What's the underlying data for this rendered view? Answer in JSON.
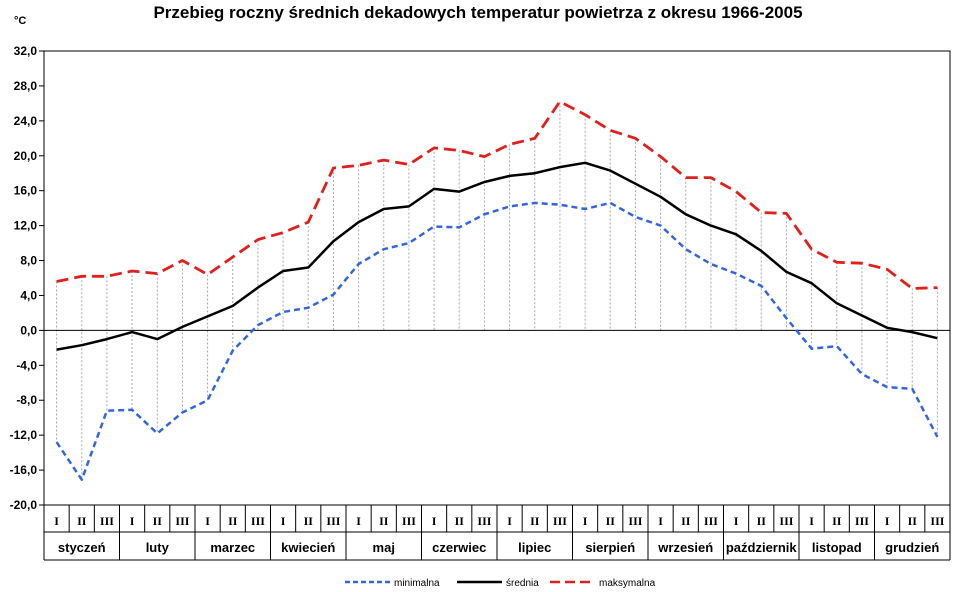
{
  "chart_data": {
    "type": "line",
    "title": "Przebieg roczny średnich dekadowych temperatur powietrza z okresu 1966-2005",
    "ylabel": "°C",
    "ylim": [
      -20.0,
      32.0
    ],
    "yticks": [
      "32,0",
      "28,0",
      "24,0",
      "20,0",
      "16,0",
      "12,0",
      "8,0",
      "4,0",
      "0,0",
      "-4,0",
      "-8,0",
      "-12,0",
      "-16,0",
      "-20,0"
    ],
    "decades": [
      "I",
      "II",
      "III"
    ],
    "months": [
      "styczeń",
      "luty",
      "marzec",
      "kwiecień",
      "maj",
      "czerwiec",
      "lipiec",
      "sierpień",
      "wrzesień",
      "październik",
      "listopad",
      "grudzień"
    ],
    "grid": "vertical dotted drop lines",
    "legend_position": "bottom",
    "series": [
      {
        "name": "minimalna",
        "color": "#3366dd",
        "dash": "dashed",
        "values": [
          -12.8,
          -17.1,
          -9.2,
          -9.1,
          -11.8,
          -9.4,
          -8.0,
          -2.3,
          0.6,
          2.1,
          2.6,
          4.1,
          7.6,
          9.3,
          10.0,
          11.9,
          11.8,
          13.3,
          14.2,
          14.6,
          14.4,
          13.9,
          14.6,
          13.0,
          12.0,
          9.3,
          7.6,
          6.5,
          5.1,
          1.4,
          -2.1,
          -1.8,
          -5.0,
          -6.5,
          -6.7,
          -12.2
        ]
      },
      {
        "name": "średnia",
        "color": "#000000",
        "dash": "solid",
        "values": [
          -2.2,
          -1.7,
          -1.0,
          -0.2,
          -1.0,
          0.4,
          1.6,
          2.8,
          4.9,
          6.8,
          7.2,
          10.2,
          12.4,
          13.9,
          14.2,
          16.2,
          15.9,
          17.0,
          17.7,
          18.0,
          18.7,
          19.2,
          18.3,
          16.8,
          15.3,
          13.3,
          12.0,
          11.0,
          9.1,
          6.7,
          5.4,
          3.1,
          1.7,
          0.3,
          -0.2,
          -0.9
        ]
      },
      {
        "name": "maksymalna",
        "color": "#e0201c",
        "dash": "long-dashed",
        "values": [
          5.6,
          6.2,
          6.2,
          6.8,
          6.5,
          8.0,
          6.4,
          8.4,
          10.4,
          11.2,
          12.4,
          18.6,
          18.9,
          19.5,
          19.0,
          20.9,
          20.6,
          19.9,
          21.3,
          22.0,
          26.2,
          24.7,
          22.9,
          22.0,
          19.9,
          17.5,
          17.5,
          15.9,
          13.5,
          13.4,
          9.3,
          7.8,
          7.7,
          7.0,
          4.8,
          4.9
        ]
      }
    ]
  }
}
